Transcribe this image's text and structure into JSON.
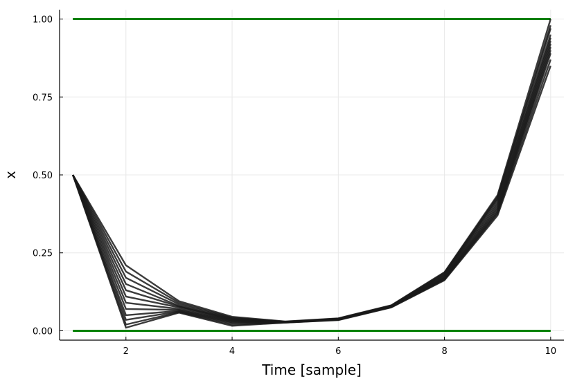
{
  "chart_data": {
    "type": "line",
    "xlabel": "Time [sample]",
    "ylabel": "x",
    "xlim": [
      0.75,
      10.25
    ],
    "ylim": [
      -0.03,
      1.03
    ],
    "x_ticks": [
      2,
      4,
      6,
      8,
      10
    ],
    "x_tick_labels": [
      "2",
      "4",
      "6",
      "8",
      "10"
    ],
    "y_ticks": [
      0.0,
      0.25,
      0.5,
      0.75,
      1.0
    ],
    "y_tick_labels": [
      "0.00",
      "0.25",
      "0.50",
      "0.75",
      "1.00"
    ],
    "grid": true,
    "legend": "none",
    "x": [
      1,
      2,
      3,
      4,
      5,
      6,
      7,
      8,
      9,
      10
    ],
    "trajectories": [
      [
        0.5,
        0.21,
        0.095,
        0.045,
        0.03,
        0.04,
        0.082,
        0.188,
        0.435,
        1.0
      ],
      [
        0.5,
        0.19,
        0.09,
        0.042,
        0.029,
        0.039,
        0.081,
        0.186,
        0.43,
        0.98
      ],
      [
        0.5,
        0.17,
        0.085,
        0.04,
        0.029,
        0.039,
        0.08,
        0.183,
        0.425,
        0.97
      ],
      [
        0.5,
        0.15,
        0.08,
        0.038,
        0.029,
        0.038,
        0.08,
        0.18,
        0.42,
        0.95
      ],
      [
        0.5,
        0.13,
        0.078,
        0.036,
        0.028,
        0.038,
        0.079,
        0.178,
        0.412,
        0.94
      ],
      [
        0.5,
        0.11,
        0.075,
        0.034,
        0.028,
        0.037,
        0.078,
        0.175,
        0.405,
        0.93
      ],
      [
        0.5,
        0.09,
        0.07,
        0.032,
        0.028,
        0.037,
        0.078,
        0.172,
        0.398,
        0.92
      ],
      [
        0.5,
        0.07,
        0.067,
        0.03,
        0.027,
        0.036,
        0.077,
        0.17,
        0.392,
        0.91
      ],
      [
        0.5,
        0.05,
        0.064,
        0.027,
        0.027,
        0.036,
        0.077,
        0.168,
        0.386,
        0.9
      ],
      [
        0.5,
        0.035,
        0.062,
        0.024,
        0.027,
        0.035,
        0.076,
        0.166,
        0.381,
        0.89
      ],
      [
        0.5,
        0.02,
        0.06,
        0.02,
        0.026,
        0.035,
        0.076,
        0.164,
        0.376,
        0.87
      ],
      [
        0.5,
        0.01,
        0.058,
        0.016,
        0.026,
        0.034,
        0.075,
        0.162,
        0.37,
        0.85
      ]
    ],
    "bounds": [
      {
        "y": 0.0,
        "color": "#008000"
      },
      {
        "y": 1.0,
        "color": "#008000"
      }
    ],
    "trajectory_color": "#1a1a1a"
  }
}
